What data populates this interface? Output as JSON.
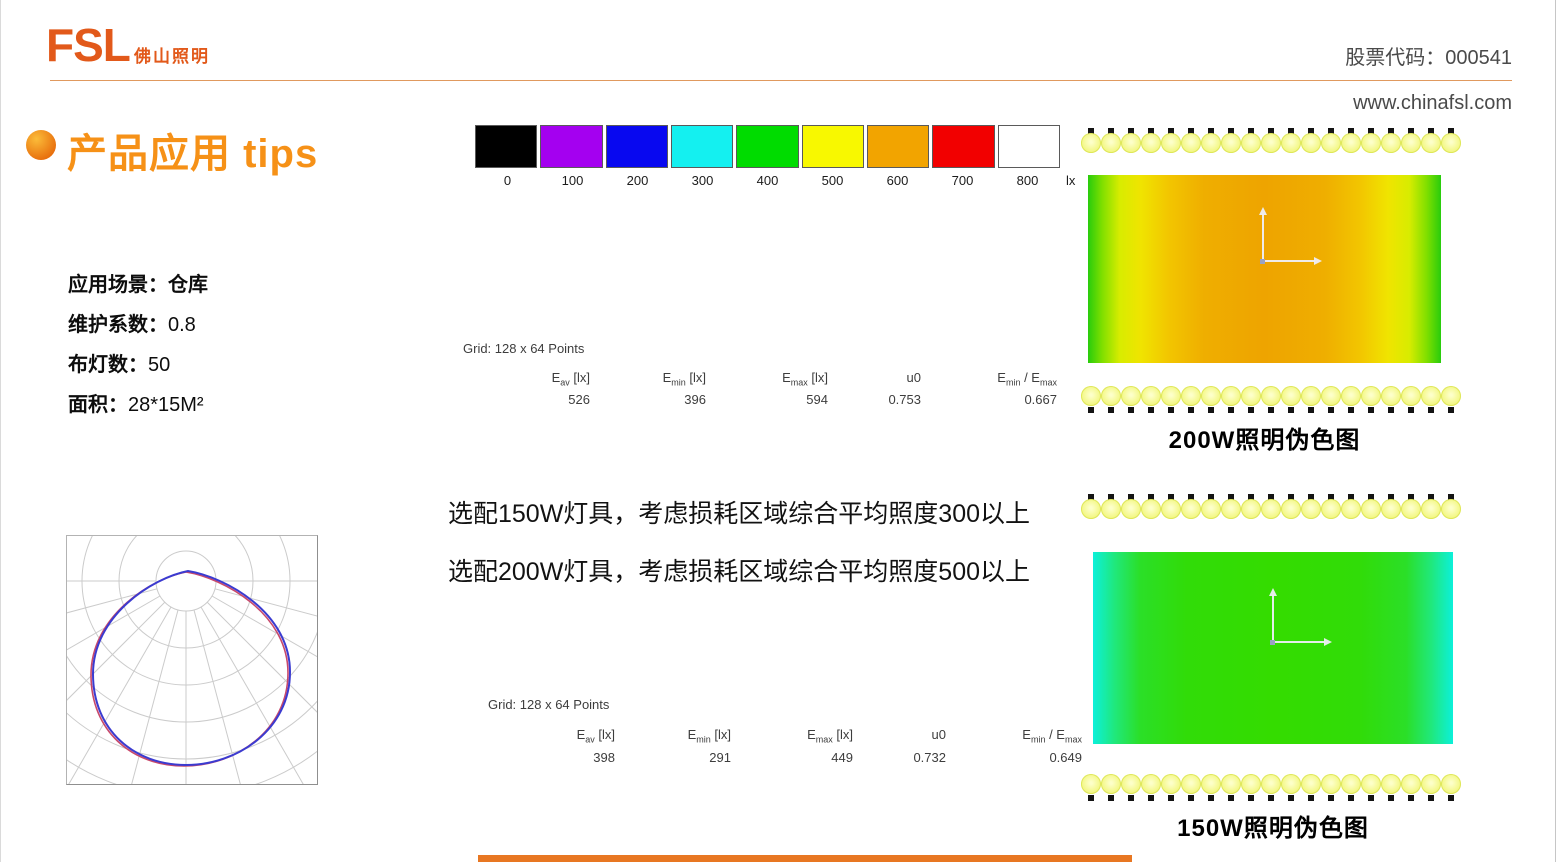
{
  "header": {
    "logo_text": "FSL",
    "logo_subtext": "佛山照明",
    "stock_label": "股票代码：000541",
    "website": "www.chinafsl.com"
  },
  "title": {
    "text": "产品应用 tips"
  },
  "info": {
    "items": [
      {
        "label": "应用场景：",
        "value": "仓库"
      },
      {
        "label": "维护系数：",
        "value": "0.8"
      },
      {
        "label": "布灯数：",
        "value": "50"
      },
      {
        "label": "面积：",
        "value": "28*15M²"
      }
    ]
  },
  "color_scale": {
    "unit": "lx",
    "segments": [
      {
        "label": "0",
        "color": "#000000"
      },
      {
        "label": "100",
        "color": "#a400f0"
      },
      {
        "label": "200",
        "color": "#0808f0"
      },
      {
        "label": "300",
        "color": "#14f0f0"
      },
      {
        "label": "400",
        "color": "#00dc00"
      },
      {
        "label": "500",
        "color": "#f8f800"
      },
      {
        "label": "600",
        "color": "#f2a400"
      },
      {
        "label": "700",
        "color": "#f20000"
      },
      {
        "label": "800",
        "color": "#ffffff"
      }
    ]
  },
  "table_headers": {
    "eav": {
      "base": "E",
      "sub": "av",
      "unit": " [lx]"
    },
    "emin": {
      "base": "E",
      "sub": "min",
      "unit": " [lx]"
    },
    "emax": {
      "base": "E",
      "sub": "max",
      "unit": " [lx]"
    },
    "u0": {
      "base": "u0",
      "sub": "",
      "unit": ""
    },
    "ratio": {
      "base": "E",
      "sub": "min",
      "mid": " / E",
      "sub2": "max"
    }
  },
  "tables": [
    {
      "grid_label": "Grid: 128 x 64 Points",
      "eav": "526",
      "emin": "396",
      "emax": "594",
      "u0": "0.753",
      "ratio": "0.667"
    },
    {
      "grid_label": "Grid: 128 x 64 Points",
      "eav": "398",
      "emin": "291",
      "emax": "449",
      "u0": "0.732",
      "ratio": "0.649"
    }
  ],
  "notes": [
    "选配150W灯具，考虑损耗区域综合平均照度300以上",
    "选配200W灯具，考虑损耗区域综合平均照度500以上"
  ],
  "falsecolor": [
    {
      "caption": "200W照明伪色图"
    },
    {
      "caption": "150W照明伪色图"
    }
  ],
  "bulbs": {
    "per_row": 19
  },
  "colors": {
    "accent": "#e87722",
    "title": "#f69117",
    "logo": "#e2591a"
  }
}
